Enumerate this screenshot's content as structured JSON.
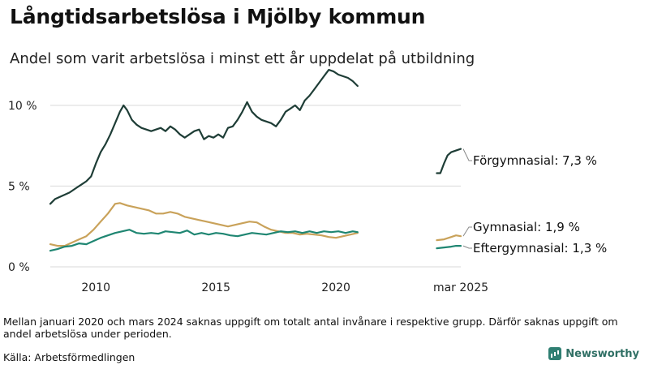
{
  "title": "Långtidsarbetslösa i Mjölby kommun",
  "subtitle": "Andel som varit arbetslösa i minst ett år uppdelat på utbildning",
  "note": "Mellan januari 2020 och mars 2024 saknas uppgift om totalt antal invånare i respektive grupp. Därför saknas uppgift om andel arbetslösa under perioden.",
  "source": "Källa: Arbetsförmedlingen",
  "logo_text": "Newsworthy",
  "chart_data": {
    "type": "line",
    "ylim": [
      0,
      11.5
    ],
    "y_ticks": [
      {
        "value": 0,
        "label": "0 %"
      },
      {
        "value": 5,
        "label": "5 %"
      },
      {
        "value": 10,
        "label": "10 %"
      }
    ],
    "x_ticks": [
      {
        "value": 2010,
        "label": "2010"
      },
      {
        "value": 2015,
        "label": "2015"
      },
      {
        "value": 2020,
        "label": "2020"
      },
      {
        "value": 2025.2,
        "label": "mar 2025"
      }
    ],
    "grid": true,
    "series": [
      {
        "name": "Förgymnasial",
        "color": "#1e3d36",
        "end_label": "Förgymnasial: 7,3 %",
        "segments": [
          [
            [
              2008.1,
              3.9
            ],
            [
              2008.3,
              4.2
            ],
            [
              2008.6,
              4.4
            ],
            [
              2008.9,
              4.6
            ],
            [
              2009.2,
              4.9
            ],
            [
              2009.4,
              5.1
            ],
            [
              2009.6,
              5.3
            ],
            [
              2009.8,
              5.6
            ],
            [
              2010.0,
              6.4
            ],
            [
              2010.2,
              7.1
            ],
            [
              2010.4,
              7.6
            ],
            [
              2010.6,
              8.2
            ],
            [
              2010.8,
              8.9
            ],
            [
              2011.0,
              9.6
            ],
            [
              2011.15,
              10.0
            ],
            [
              2011.3,
              9.7
            ],
            [
              2011.5,
              9.1
            ],
            [
              2011.7,
              8.8
            ],
            [
              2011.9,
              8.6
            ],
            [
              2012.1,
              8.5
            ],
            [
              2012.3,
              8.4
            ],
            [
              2012.5,
              8.5
            ],
            [
              2012.7,
              8.6
            ],
            [
              2012.9,
              8.4
            ],
            [
              2013.1,
              8.7
            ],
            [
              2013.3,
              8.5
            ],
            [
              2013.5,
              8.2
            ],
            [
              2013.7,
              8.0
            ],
            [
              2013.9,
              8.2
            ],
            [
              2014.1,
              8.4
            ],
            [
              2014.3,
              8.5
            ],
            [
              2014.5,
              7.9
            ],
            [
              2014.7,
              8.1
            ],
            [
              2014.9,
              8.0
            ],
            [
              2015.1,
              8.2
            ],
            [
              2015.3,
              8.0
            ],
            [
              2015.5,
              8.6
            ],
            [
              2015.7,
              8.7
            ],
            [
              2015.9,
              9.1
            ],
            [
              2016.1,
              9.6
            ],
            [
              2016.3,
              10.2
            ],
            [
              2016.5,
              9.6
            ],
            [
              2016.7,
              9.3
            ],
            [
              2016.9,
              9.1
            ],
            [
              2017.1,
              9.0
            ],
            [
              2017.3,
              8.9
            ],
            [
              2017.5,
              8.7
            ],
            [
              2017.7,
              9.1
            ],
            [
              2017.9,
              9.6
            ],
            [
              2018.1,
              9.8
            ],
            [
              2018.3,
              10.0
            ],
            [
              2018.5,
              9.7
            ],
            [
              2018.7,
              10.3
            ],
            [
              2018.9,
              10.6
            ],
            [
              2019.1,
              11.0
            ],
            [
              2019.3,
              11.4
            ],
            [
              2019.5,
              11.8
            ],
            [
              2019.7,
              12.2
            ],
            [
              2019.9,
              12.1
            ],
            [
              2020.1,
              11.9
            ],
            [
              2020.3,
              11.8
            ],
            [
              2020.5,
              11.7
            ],
            [
              2020.7,
              11.5
            ],
            [
              2020.9,
              11.2
            ]
          ],
          [
            [
              2024.2,
              5.8
            ],
            [
              2024.35,
              5.8
            ],
            [
              2024.5,
              6.4
            ],
            [
              2024.65,
              6.9
            ],
            [
              2024.8,
              7.1
            ],
            [
              2025.0,
              7.2
            ],
            [
              2025.2,
              7.3
            ]
          ]
        ]
      },
      {
        "name": "Gymnasial",
        "color": "#c9a25a",
        "end_label": "Gymnasial: 1,9 %",
        "segments": [
          [
            [
              2008.1,
              1.4
            ],
            [
              2008.4,
              1.3
            ],
            [
              2008.7,
              1.3
            ],
            [
              2009.0,
              1.5
            ],
            [
              2009.3,
              1.7
            ],
            [
              2009.6,
              1.9
            ],
            [
              2009.9,
              2.3
            ],
            [
              2010.2,
              2.8
            ],
            [
              2010.5,
              3.3
            ],
            [
              2010.8,
              3.9
            ],
            [
              2011.0,
              3.95
            ],
            [
              2011.3,
              3.8
            ],
            [
              2011.6,
              3.7
            ],
            [
              2011.9,
              3.6
            ],
            [
              2012.2,
              3.5
            ],
            [
              2012.5,
              3.3
            ],
            [
              2012.8,
              3.3
            ],
            [
              2013.1,
              3.4
            ],
            [
              2013.4,
              3.3
            ],
            [
              2013.7,
              3.1
            ],
            [
              2014.0,
              3.0
            ],
            [
              2014.3,
              2.9
            ],
            [
              2014.6,
              2.8
            ],
            [
              2014.9,
              2.7
            ],
            [
              2015.2,
              2.6
            ],
            [
              2015.5,
              2.5
            ],
            [
              2015.8,
              2.6
            ],
            [
              2016.1,
              2.7
            ],
            [
              2016.4,
              2.8
            ],
            [
              2016.7,
              2.75
            ],
            [
              2017.0,
              2.5
            ],
            [
              2017.3,
              2.3
            ],
            [
              2017.6,
              2.2
            ],
            [
              2017.9,
              2.1
            ],
            [
              2018.2,
              2.1
            ],
            [
              2018.5,
              2.0
            ],
            [
              2018.8,
              2.05
            ],
            [
              2019.1,
              2.0
            ],
            [
              2019.4,
              1.95
            ],
            [
              2019.7,
              1.85
            ],
            [
              2020.0,
              1.8
            ],
            [
              2020.3,
              1.9
            ],
            [
              2020.6,
              2.0
            ],
            [
              2020.9,
              2.1
            ]
          ],
          [
            [
              2024.2,
              1.65
            ],
            [
              2024.5,
              1.7
            ],
            [
              2024.8,
              1.85
            ],
            [
              2025.0,
              1.95
            ],
            [
              2025.2,
              1.9
            ]
          ]
        ]
      },
      {
        "name": "Eftergymnasial",
        "color": "#1f8672",
        "end_label": "Eftergymnasial: 1,3 %",
        "segments": [
          [
            [
              2008.1,
              1.0
            ],
            [
              2008.4,
              1.1
            ],
            [
              2008.7,
              1.25
            ],
            [
              2009.0,
              1.3
            ],
            [
              2009.3,
              1.45
            ],
            [
              2009.6,
              1.4
            ],
            [
              2009.9,
              1.6
            ],
            [
              2010.2,
              1.8
            ],
            [
              2010.5,
              1.95
            ],
            [
              2010.8,
              2.1
            ],
            [
              2011.1,
              2.2
            ],
            [
              2011.4,
              2.3
            ],
            [
              2011.7,
              2.1
            ],
            [
              2012.0,
              2.05
            ],
            [
              2012.3,
              2.1
            ],
            [
              2012.6,
              2.05
            ],
            [
              2012.9,
              2.2
            ],
            [
              2013.2,
              2.15
            ],
            [
              2013.5,
              2.1
            ],
            [
              2013.8,
              2.25
            ],
            [
              2014.1,
              2.0
            ],
            [
              2014.4,
              2.1
            ],
            [
              2014.7,
              2.0
            ],
            [
              2015.0,
              2.1
            ],
            [
              2015.3,
              2.05
            ],
            [
              2015.6,
              1.95
            ],
            [
              2015.9,
              1.9
            ],
            [
              2016.2,
              2.0
            ],
            [
              2016.5,
              2.1
            ],
            [
              2016.8,
              2.05
            ],
            [
              2017.1,
              2.0
            ],
            [
              2017.4,
              2.1
            ],
            [
              2017.7,
              2.2
            ],
            [
              2018.0,
              2.15
            ],
            [
              2018.3,
              2.2
            ],
            [
              2018.6,
              2.1
            ],
            [
              2018.9,
              2.2
            ],
            [
              2019.2,
              2.1
            ],
            [
              2019.5,
              2.2
            ],
            [
              2019.8,
              2.15
            ],
            [
              2020.1,
              2.2
            ],
            [
              2020.4,
              2.1
            ],
            [
              2020.7,
              2.2
            ],
            [
              2020.9,
              2.15
            ]
          ],
          [
            [
              2024.2,
              1.15
            ],
            [
              2024.5,
              1.2
            ],
            [
              2024.8,
              1.25
            ],
            [
              2025.0,
              1.3
            ],
            [
              2025.2,
              1.3
            ]
          ]
        ]
      }
    ]
  }
}
